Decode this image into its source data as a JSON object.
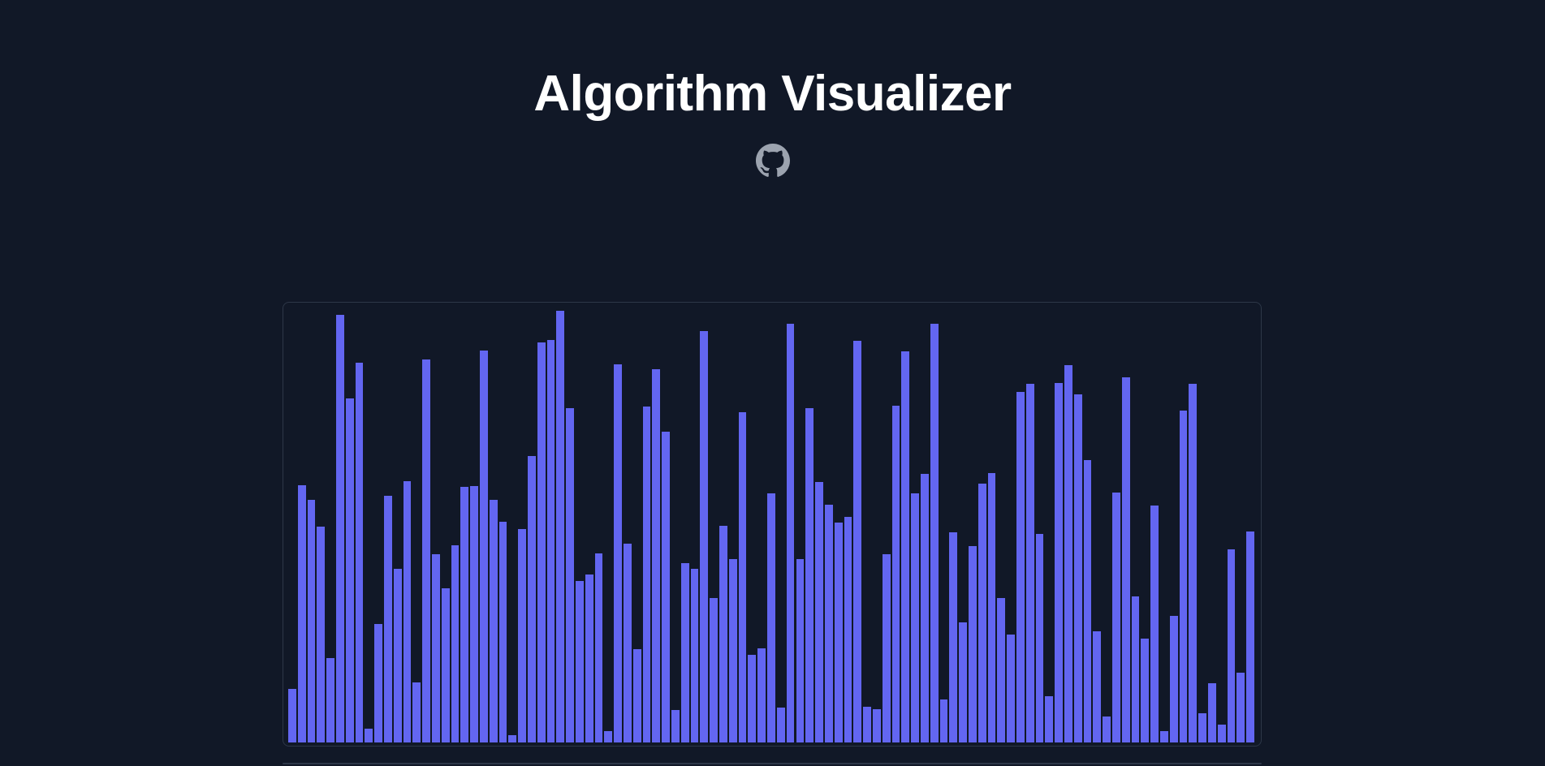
{
  "header": {
    "title": "Algorithm Visualizer",
    "github_icon": "github-icon"
  },
  "colors": {
    "background": "#111827",
    "bar": "#6366f1",
    "panel_border": "#2d3748",
    "icon": "#9ca3af"
  },
  "chart_data": {
    "type": "bar",
    "title": "",
    "xlabel": "",
    "ylabel": "",
    "ylim": [
      0,
      500
    ],
    "values": [
      62,
      296,
      279,
      248,
      97,
      492,
      396,
      437,
      16,
      136,
      284,
      200,
      300,
      69,
      440,
      216,
      177,
      227,
      294,
      295,
      451,
      279,
      254,
      8,
      245,
      329,
      460,
      463,
      496,
      384,
      186,
      193,
      217,
      13,
      435,
      229,
      107,
      386,
      429,
      357,
      37,
      206,
      200,
      473,
      166,
      249,
      211,
      380,
      101,
      108,
      286,
      40,
      481,
      211,
      384,
      299,
      273,
      253,
      259,
      462,
      41,
      38,
      216,
      387,
      450,
      286,
      309,
      481,
      49,
      242,
      138,
      226,
      298,
      310,
      166,
      124,
      403,
      412,
      240,
      53,
      413,
      434,
      400,
      325,
      128,
      30,
      287,
      420,
      168,
      119,
      272,
      13,
      146,
      382,
      412,
      34,
      68,
      21,
      222,
      80,
      243
    ]
  }
}
